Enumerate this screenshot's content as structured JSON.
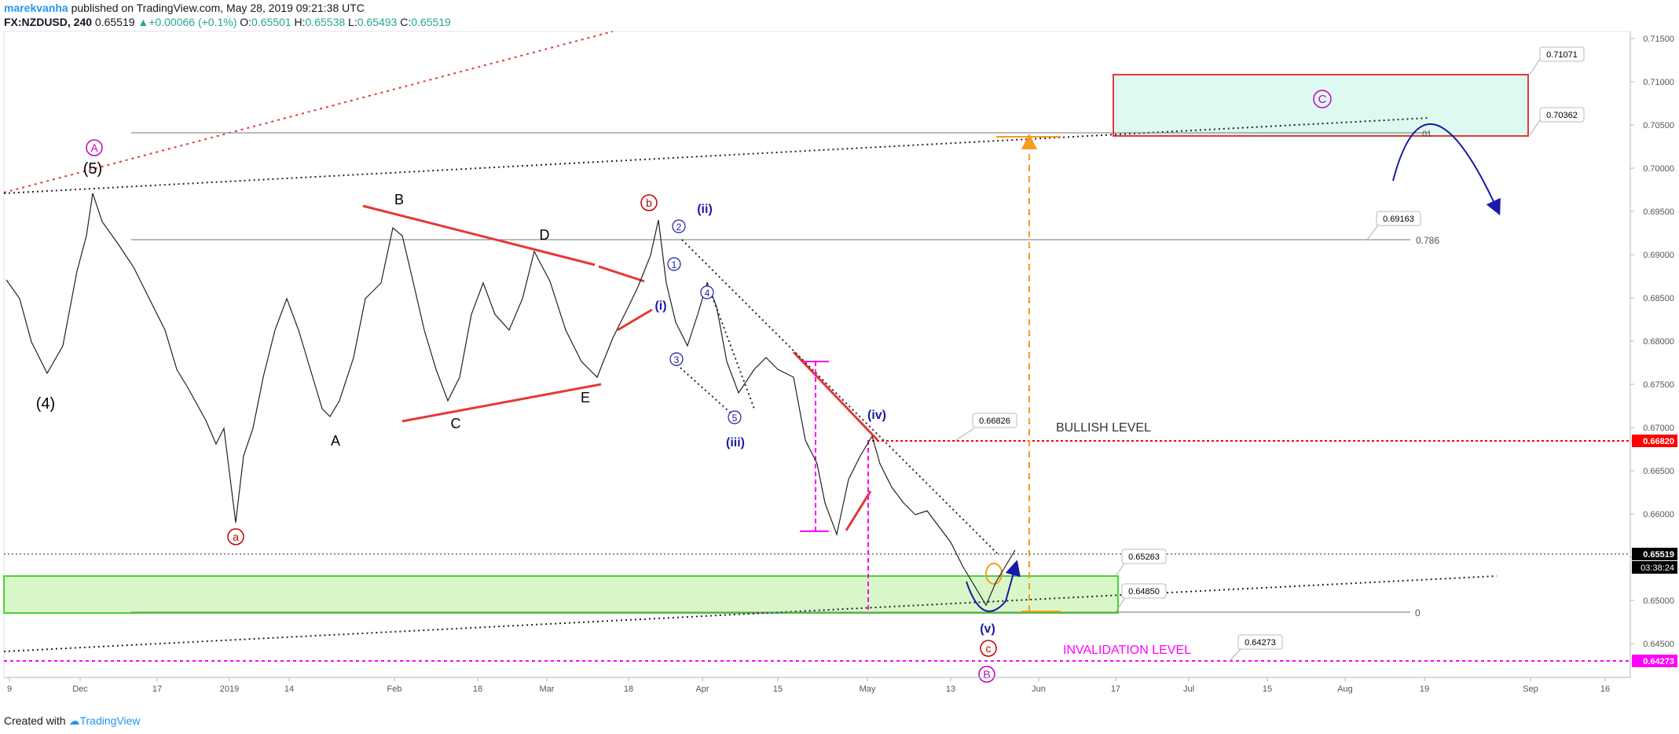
{
  "header": {
    "author": "marekvanha",
    "published": "published on TradingView.com, May 28, 2019 09:21:38 UTC",
    "symbol": "FX:NZDUSD, 240",
    "last": "0.65519",
    "change": "+0.00066 (+0.1%)",
    "o_label": "O:",
    "o": "0.65501",
    "h_label": "H:",
    "h": "0.65538",
    "l_label": "L:",
    "l": "0.65493",
    "c_label": "C:",
    "c": "0.65519"
  },
  "footer": {
    "created_with": "Created with",
    "brand": "TradingView"
  },
  "price_axis": {
    "ticks": [
      "0.71500",
      "0.71000",
      "0.70500",
      "0.70000",
      "0.69500",
      "0.69000",
      "0.68500",
      "0.68000",
      "0.67500",
      "0.67000",
      "0.66500",
      "0.66000",
      "0.65500",
      "0.65000",
      "0.64500"
    ],
    "current_price": "0.65519",
    "countdown": "03:38:24",
    "bullish_price": "0.66820",
    "invalidation_price": "0.64273"
  },
  "time_axis": {
    "ticks": [
      "9",
      "Dec",
      "17",
      "2019",
      "14",
      "Feb",
      "18",
      "Mar",
      "18",
      "Apr",
      "15",
      "May",
      "13",
      "Jun",
      "17",
      "Jul",
      "15",
      "Aug",
      "19",
      "Sep",
      "16"
    ]
  },
  "annotations": {
    "wave_A_circled": "A",
    "wave_5": "(5)",
    "wave_4": "(4)",
    "wave_a": "a",
    "wave_b": "b",
    "wave_c": "c",
    "tri_A": "A",
    "tri_B": "B",
    "tri_C": "C",
    "tri_D": "D",
    "tri_E": "E",
    "w_i": "(i)",
    "w_ii": "(ii)",
    "w_iii": "(iii)",
    "w_iv": "(iv)",
    "w_v": "(v)",
    "m1": "1",
    "m2": "2",
    "m3": "3",
    "m4": "4",
    "m5": "5",
    "wave_B_circled": "B",
    "wave_C_circled": "C",
    "bullish_level": "BULLISH LEVEL",
    "invalidation_level": "INVALIDATION LEVEL",
    "fib_786": "0.786",
    "fib_0": "0",
    "fib_1": "01"
  },
  "price_labels": {
    "p71071": "0.71071",
    "p70362": "0.70362",
    "p69163": "0.69163",
    "p66826": "0.66826",
    "p65263": "0.65263",
    "p64850": "0.64850",
    "p64273": "0.64273"
  },
  "colors": {
    "up": "#26a69a",
    "bullish_red": "#ff0000",
    "invalidation_magenta": "#ff00ff",
    "zone_green_fill": "#d8f7c8",
    "zone_green_stroke": "#4cd137",
    "target_fill": "#dcfaf0",
    "target_stroke": "#e53935",
    "wave_blue": "#1a1aa6",
    "arrow_orange": "#f59b1f",
    "author_blue": "#2196f3"
  }
}
